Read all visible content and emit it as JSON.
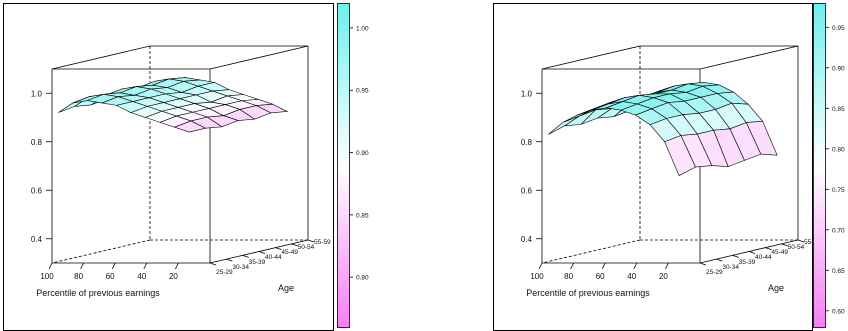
{
  "chart_data": [
    {
      "type": "surface",
      "xlabel": "Percentile of previous earnings",
      "ylabel": "Age",
      "x_ticks": [
        "100",
        "80",
        "60",
        "40",
        "20"
      ],
      "y_ticks": [
        "25-29",
        "30-34",
        "35-39",
        "40-44",
        "45-49",
        "50-54",
        "55-59"
      ],
      "z_ticks": [
        "0.4",
        "0.6",
        "0.8",
        "1.0"
      ],
      "zlim": [
        0.3,
        1.1
      ],
      "colorbar": {
        "ticks": [
          "0.80",
          "0.85",
          "0.90",
          "0.95",
          "1.00"
        ],
        "range": [
          0.76,
          1.02
        ],
        "color_low": "#f47ff4",
        "color_mid": "#ffffff",
        "color_high": "#6ef0ee"
      },
      "x_percentiles": [
        100,
        90,
        80,
        70,
        60,
        50,
        40,
        30,
        20,
        10
      ],
      "age_groups": [
        "25-29",
        "30-34",
        "35-39",
        "40-44",
        "45-49",
        "50-54",
        "55-59"
      ],
      "z": [
        [
          0.92,
          0.96,
          0.97,
          0.96,
          0.95,
          0.92,
          0.9,
          0.88,
          0.86,
          0.84
        ],
        [
          0.93,
          0.97,
          0.98,
          0.97,
          0.95,
          0.93,
          0.91,
          0.89,
          0.87,
          0.84
        ],
        [
          0.92,
          0.96,
          0.97,
          0.96,
          0.95,
          0.93,
          0.91,
          0.89,
          0.87,
          0.83
        ],
        [
          0.93,
          0.97,
          0.98,
          0.97,
          0.95,
          0.93,
          0.91,
          0.89,
          0.86,
          0.84
        ],
        [
          0.92,
          0.96,
          0.97,
          0.96,
          0.94,
          0.93,
          0.9,
          0.89,
          0.87,
          0.83
        ],
        [
          0.93,
          0.97,
          0.98,
          0.97,
          0.95,
          0.93,
          0.91,
          0.89,
          0.87,
          0.84
        ],
        [
          0.92,
          0.96,
          0.97,
          0.96,
          0.95,
          0.92,
          0.9,
          0.88,
          0.86,
          0.83
        ]
      ]
    },
    {
      "type": "surface",
      "xlabel": "Percentile of previous earnings",
      "ylabel": "Age",
      "x_ticks": [
        "100",
        "80",
        "60",
        "40",
        "20"
      ],
      "y_ticks": [
        "25-29",
        "30-34",
        "35-39",
        "40-44",
        "45-49",
        "50-54",
        "55-59"
      ],
      "z_ticks": [
        "0.4",
        "0.6",
        "0.8",
        "1.0"
      ],
      "zlim": [
        0.3,
        1.1
      ],
      "colorbar": {
        "ticks": [
          "0.60",
          "0.65",
          "0.70",
          "0.75",
          "0.80",
          "0.85",
          "0.90",
          "0.95"
        ],
        "range": [
          0.58,
          0.98
        ],
        "color_low": "#f47ff4",
        "color_mid": "#ffffff",
        "color_high": "#6ef0ee"
      },
      "x_percentiles": [
        100,
        90,
        80,
        70,
        60,
        50,
        40,
        30,
        20,
        10
      ],
      "age_groups": [
        "25-29",
        "30-34",
        "35-39",
        "40-44",
        "45-49",
        "50-54",
        "55-59"
      ],
      "z": [
        [
          0.83,
          0.88,
          0.91,
          0.93,
          0.94,
          0.93,
          0.91,
          0.87,
          0.8,
          0.66
        ],
        [
          0.85,
          0.89,
          0.92,
          0.94,
          0.95,
          0.94,
          0.92,
          0.88,
          0.81,
          0.68
        ],
        [
          0.84,
          0.9,
          0.93,
          0.95,
          0.96,
          0.95,
          0.93,
          0.88,
          0.8,
          0.67
        ],
        [
          0.85,
          0.89,
          0.93,
          0.94,
          0.95,
          0.95,
          0.92,
          0.87,
          0.8,
          0.65
        ],
        [
          0.84,
          0.89,
          0.92,
          0.94,
          0.95,
          0.94,
          0.92,
          0.87,
          0.79,
          0.66
        ],
        [
          0.85,
          0.9,
          0.93,
          0.95,
          0.96,
          0.95,
          0.92,
          0.88,
          0.8,
          0.67
        ],
        [
          0.84,
          0.89,
          0.92,
          0.94,
          0.95,
          0.94,
          0.91,
          0.86,
          0.79,
          0.65
        ]
      ]
    }
  ]
}
